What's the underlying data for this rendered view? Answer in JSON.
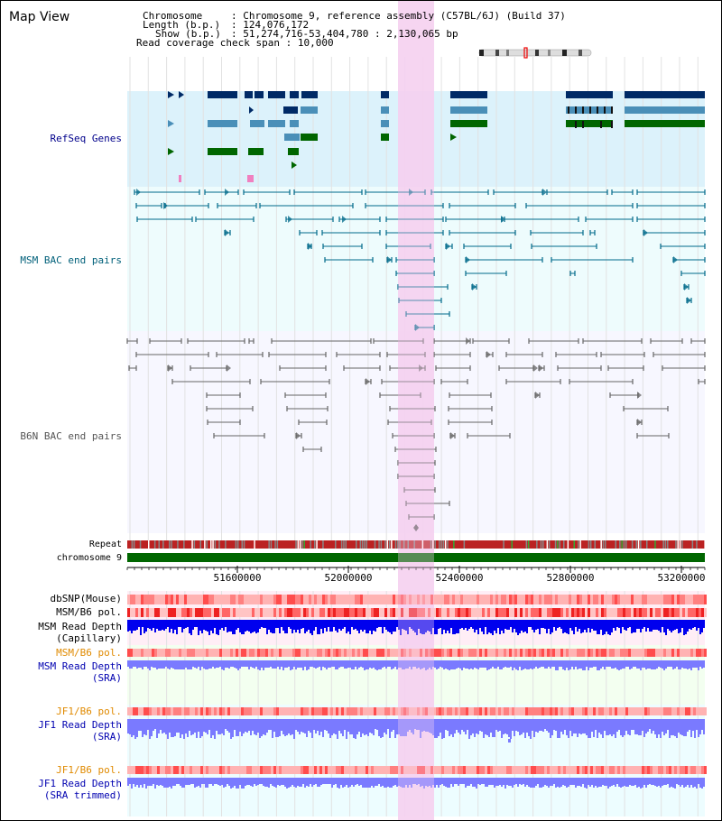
{
  "title": "Map View",
  "header": {
    "chromosome_label": "Chromosome",
    "chromosome_value": "Chromosome 9, reference assembly (C57BL/6J) (Build 37)",
    "length_label": "Length (b.p.)",
    "length_value": "124,076,172",
    "show_label": "Show (b.p.)",
    "show_value": "51,274,716-53,404,780 : 2,130,065 bp",
    "coverage_label": "Read coverage check span",
    "coverage_value": "10,000"
  },
  "tracks": {
    "refseq": "RefSeq Genes",
    "msm_bac": "MSM BAC end pairs",
    "b6n_bac": "B6N BAC end pairs",
    "repeat": "Repeat",
    "chromosome": "chromosome 9",
    "dbsnp": "dbSNP(Mouse)",
    "msm_b6_pol": "MSM/B6 pol.",
    "msm_depth_cap_1": "MSM Read Depth",
    "msm_depth_cap_2": "(Capillary)",
    "msm_b6_pol_sra": "MSM/B6 pol.",
    "msm_depth_sra_1": "MSM Read Depth",
    "msm_depth_sra_2": "(SRA)",
    "jf1_b6_pol": "JF1/B6 pol.",
    "jf1_depth_sra_1": "JF1 Read Depth",
    "jf1_depth_sra_2": "(SRA)",
    "jf1_b6_pol_trim": "JF1/B6 pol.",
    "jf1_depth_trim_1": "JF1 Read Depth",
    "jf1_depth_trim_2": "(SRA trimmed)"
  },
  "axis": {
    "ticks": [
      "51600000",
      "52000000",
      "52400000",
      "52800000",
      "53200000"
    ]
  },
  "colors": {
    "gene_dark": "#002a66",
    "gene_mid": "#4a8fb8",
    "gene_green": "#006600",
    "msm_line": "#006a8a",
    "b6n_line": "#666666",
    "highlight": "#f5d0f0",
    "chromosome": "#006600",
    "depth_blue": "#0000ee",
    "depth_light": "#7a7aff",
    "pol_red": "#ee3333"
  }
}
